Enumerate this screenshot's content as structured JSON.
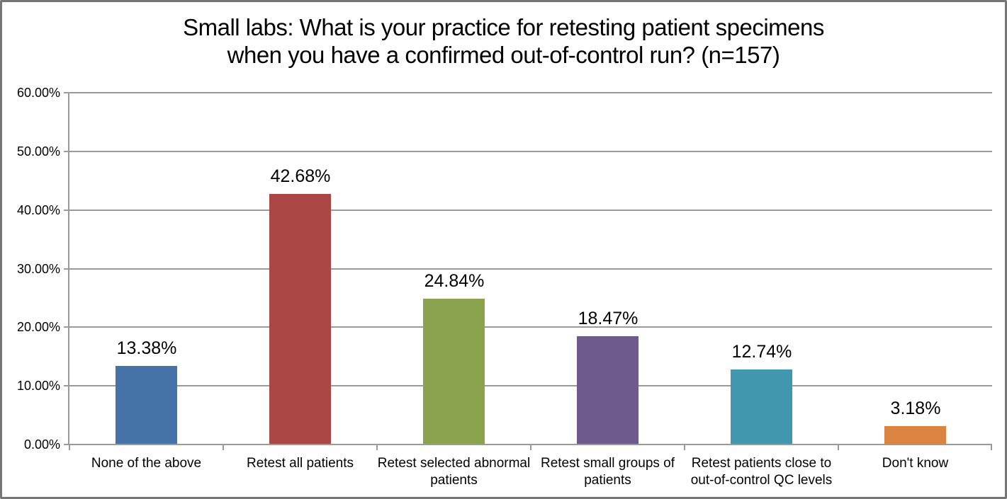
{
  "chart_data": {
    "type": "bar",
    "title": "Small labs: What is your practice for retesting patient specimens when you have a confirmed out-of-control run? (n=157)",
    "title_lines": [
      "Small labs: What is your practice for retesting patient specimens",
      "when you have a confirmed out-of-control run? (n=157)"
    ],
    "categories": [
      "None of the above",
      "Retest all patients",
      "Retest selected abnormal patients",
      "Retest small groups of patients",
      "Retest patients close to out-of-control QC levels",
      "Don't know"
    ],
    "values": [
      13.38,
      42.68,
      24.84,
      18.47,
      12.74,
      3.18
    ],
    "value_labels": [
      "13.38%",
      "42.68%",
      "24.84%",
      "18.47%",
      "12.74%",
      "3.18%"
    ],
    "bar_colors": [
      "#4573a7",
      "#aa4643",
      "#8ba24e",
      "#6f5a8e",
      "#4198ae",
      "#db8442"
    ],
    "xlabel": "",
    "ylabel": "",
    "ylim": [
      0,
      60
    ],
    "y_tick_values": [
      0,
      10,
      20,
      30,
      40,
      50,
      60
    ],
    "y_tick_labels": [
      "0.00%",
      "10.00%",
      "20.00%",
      "30.00%",
      "40.00%",
      "50.00%",
      "60.00%"
    ],
    "grid": true,
    "legend_position": "none"
  },
  "colors": {
    "background": "#ffffff",
    "frame_border": "#767676",
    "gridline": "#9a9a9a",
    "axis": "#9a9a9a",
    "text": "#000000"
  }
}
